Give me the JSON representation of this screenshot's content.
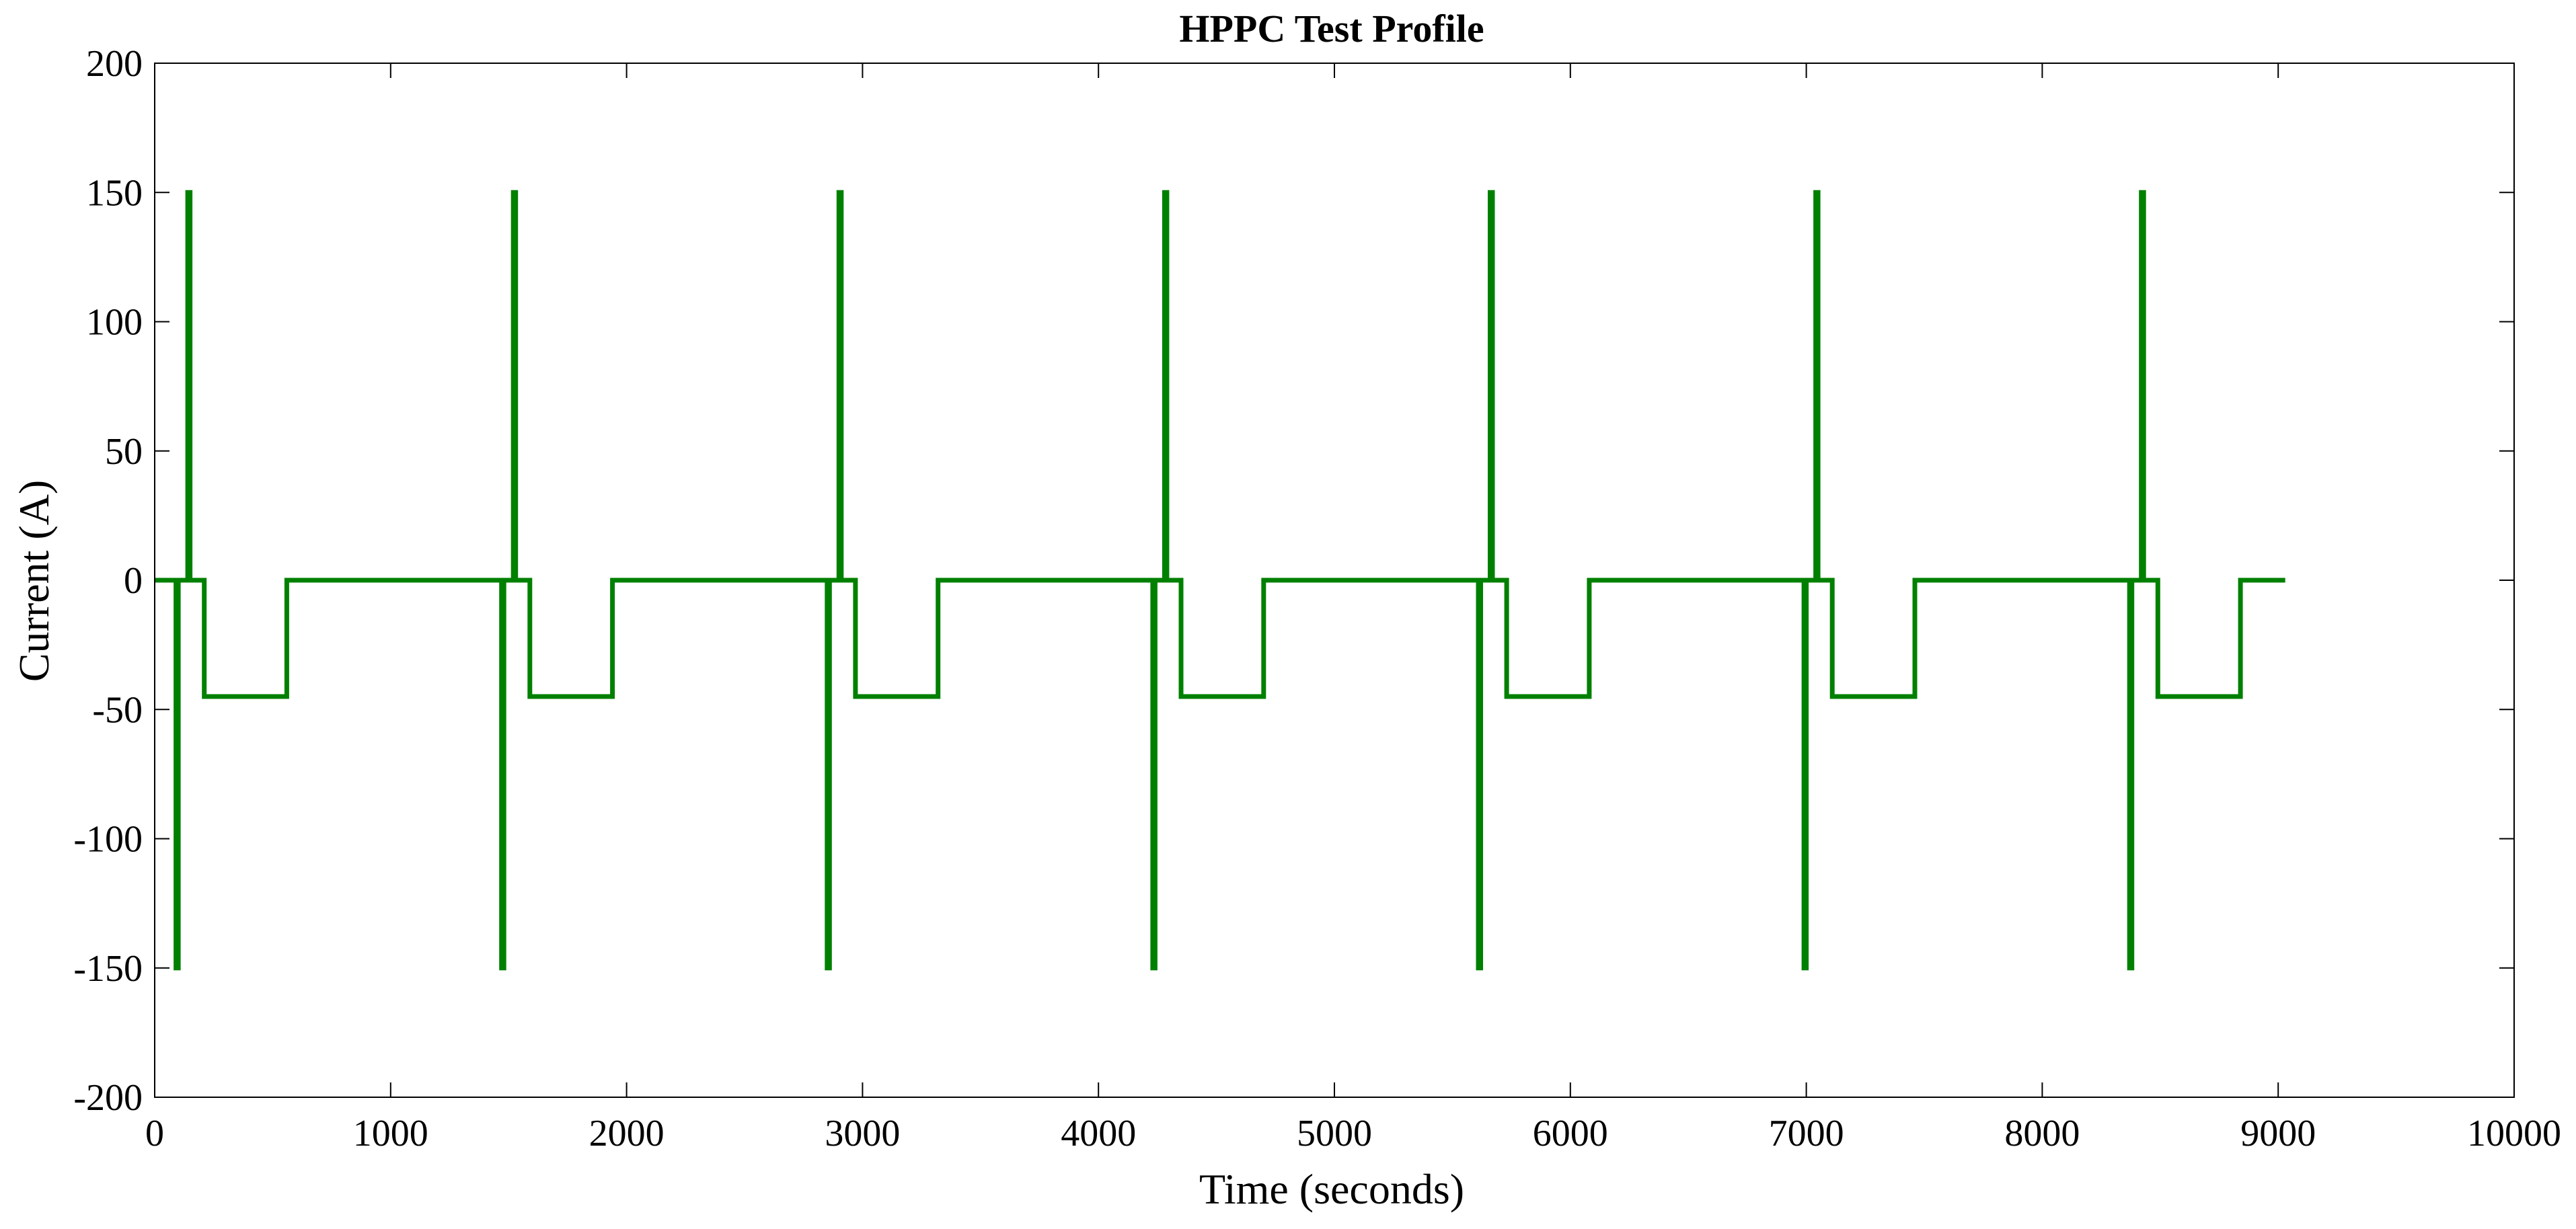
{
  "chart_data": {
    "type": "line",
    "title": "HPPC Test Profile",
    "xlabel": "Time (seconds)",
    "ylabel": "Current (A)",
    "xlim": [
      0,
      10000
    ],
    "ylim": [
      -200,
      200
    ],
    "xticks": [
      0,
      1000,
      2000,
      3000,
      4000,
      5000,
      6000,
      7000,
      8000,
      9000,
      10000
    ],
    "xtick_labels": [
      "0",
      "1000",
      "2000",
      "3000",
      "4000",
      "5000",
      "6000",
      "7000",
      "8000",
      "9000",
      "10000"
    ],
    "yticks": [
      200,
      150,
      100,
      50,
      0,
      -50,
      -100,
      -150,
      -200
    ],
    "ytick_labels": [
      "200",
      "150",
      "100",
      "50",
      "0",
      "-50",
      "-100",
      "-150",
      "-200"
    ],
    "grid": false,
    "line_color": "#008000",
    "series": [
      {
        "x": [
          0,
          90,
          90,
          100,
          100,
          140,
          140,
          150,
          150,
          210,
          210,
          560,
          560,
          1470,
          1470,
          1480,
          1480,
          1520,
          1520,
          1530,
          1530,
          1590,
          1590,
          1940,
          1940,
          2850,
          2850,
          2860,
          2860,
          2900,
          2900,
          2910,
          2910,
          2970,
          2970,
          3320,
          3320,
          4230,
          4230,
          4240,
          4240,
          4280,
          4280,
          4290,
          4290,
          4350,
          4350,
          4700,
          4700,
          5610,
          5610,
          5620,
          5620,
          5660,
          5660,
          5670,
          5670,
          5730,
          5730,
          6080,
          6080,
          6990,
          6990,
          7000,
          7000,
          7040,
          7040,
          7050,
          7050,
          7110,
          7110,
          7460,
          7460,
          8370,
          8370,
          8380,
          8380,
          8420,
          8420,
          8430,
          8430,
          8490,
          8490,
          8840,
          8840,
          9030
        ],
        "y": [
          0,
          0,
          -150,
          -150,
          0,
          0,
          150,
          150,
          0,
          0,
          -45,
          -45,
          0,
          0,
          -150,
          -150,
          0,
          0,
          150,
          150,
          0,
          0,
          -45,
          -45,
          0,
          0,
          -150,
          -150,
          0,
          0,
          150,
          150,
          0,
          0,
          -45,
          -45,
          0,
          0,
          -150,
          -150,
          0,
          0,
          150,
          150,
          0,
          0,
          -45,
          -45,
          0,
          0,
          -150,
          -150,
          0,
          0,
          150,
          150,
          0,
          0,
          -45,
          -45,
          0,
          0,
          -150,
          -150,
          0,
          0,
          150,
          150,
          0,
          0,
          -45,
          -45,
          0,
          0,
          -150,
          -150,
          0,
          0,
          150,
          150,
          0,
          0,
          -45,
          -45,
          0,
          0
        ]
      }
    ]
  }
}
